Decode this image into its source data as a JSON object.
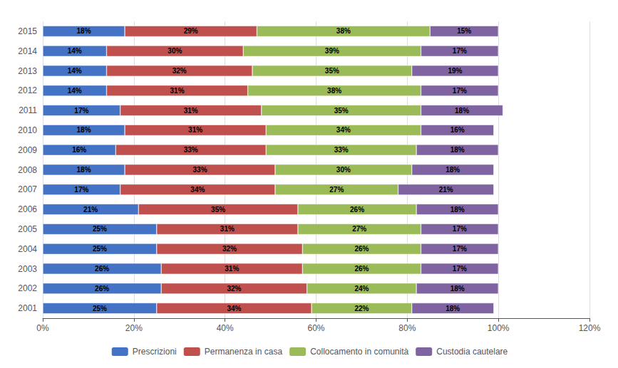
{
  "chart_data": {
    "type": "bar",
    "orientation": "horizontal",
    "stacked": true,
    "data_labels": true,
    "grid": true,
    "legend": "bottom",
    "categories": [
      "2015",
      "2014",
      "2013",
      "2012",
      "2011",
      "2010",
      "2009",
      "2008",
      "2007",
      "2006",
      "2005",
      "2004",
      "2003",
      "2002",
      "2001"
    ],
    "series": [
      {
        "name": "Prescrizioni",
        "color": "#4472C4",
        "values": [
          18,
          14,
          14,
          14,
          17,
          18,
          16,
          18,
          17,
          21,
          25,
          25,
          26,
          26,
          25
        ],
        "value_labels": [
          "18%",
          "14%",
          "14%",
          "14%",
          "17%",
          "18%",
          "16%",
          "18%",
          "17%",
          "21%",
          "25%",
          "25%",
          "26%",
          "26%",
          "25%"
        ]
      },
      {
        "name": "Permanenza in casa",
        "color": "#C0504D",
        "values": [
          29,
          30,
          32,
          31,
          31,
          31,
          33,
          33,
          34,
          35,
          31,
          32,
          31,
          32,
          34
        ],
        "value_labels": [
          "29%",
          "30%",
          "32%",
          "31%",
          "31%",
          "31%",
          "33%",
          "33%",
          "34%",
          "35%",
          "31%",
          "32%",
          "31%",
          "32%",
          "34%"
        ]
      },
      {
        "name": "Collocamento in comunità",
        "color": "#9BBB59",
        "values": [
          38,
          39,
          35,
          38,
          35,
          34,
          33,
          30,
          27,
          26,
          27,
          26,
          26,
          24,
          22
        ],
        "value_labels": [
          "38%",
          "39%",
          "35%",
          "38%",
          "35%",
          "34%",
          "33%",
          "30%",
          "27%",
          "26%",
          "27%",
          "26%",
          "26%",
          "24%",
          "22%"
        ]
      },
      {
        "name": "Custodia cautelare",
        "color": "#8064A2",
        "values": [
          15,
          17,
          19,
          17,
          18,
          16,
          18,
          18,
          21,
          18,
          17,
          17,
          17,
          18,
          18
        ],
        "value_labels": [
          "15%",
          "17%",
          "19%",
          "17%",
          "18%",
          "16%",
          "18%",
          "18%",
          "21%",
          "18%",
          "17%",
          "17%",
          "17%",
          "18%",
          "18%"
        ]
      }
    ],
    "xlim": [
      0,
      120
    ],
    "xticks": [
      {
        "value": 0,
        "label": "0%"
      },
      {
        "value": 20,
        "label": "20%"
      },
      {
        "value": 40,
        "label": "40%"
      },
      {
        "value": 60,
        "label": "60%"
      },
      {
        "value": 80,
        "label": "80%"
      },
      {
        "value": 100,
        "label": "100%"
      },
      {
        "value": 120,
        "label": "120%"
      }
    ]
  }
}
